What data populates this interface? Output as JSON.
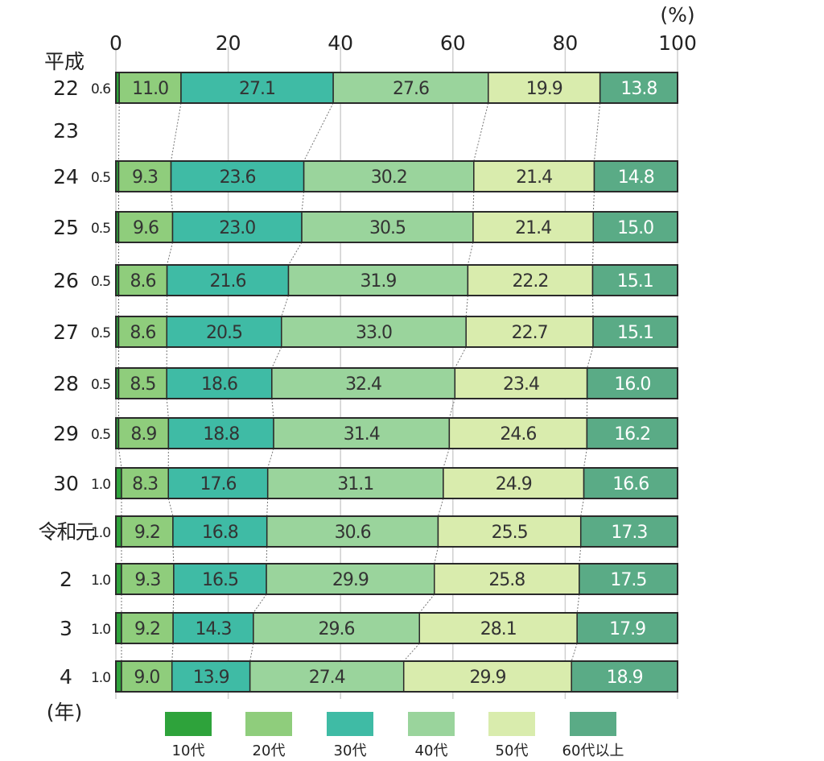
{
  "chart_data": {
    "type": "bar",
    "orientation": "horizontal",
    "stacked": "percent",
    "unit_label": "(%)",
    "year_axis_label": "(年)",
    "era_label": "平成",
    "xlim": [
      0,
      100
    ],
    "xticks": [
      0,
      20,
      40,
      60,
      80,
      100
    ],
    "grid": true,
    "legend_position": "bottom",
    "categories": [
      "22",
      "23",
      "24",
      "25",
      "26",
      "27",
      "28",
      "29",
      "30",
      "令和元",
      "2",
      "3",
      "4"
    ],
    "series": [
      {
        "name": "10代",
        "color": "#2ea33b",
        "values": [
          0.6,
          null,
          0.5,
          0.5,
          0.5,
          0.5,
          0.5,
          0.5,
          1.0,
          1.0,
          1.0,
          1.0,
          1.0
        ]
      },
      {
        "name": "20代",
        "color": "#8fcd7c",
        "values": [
          11.0,
          null,
          9.3,
          9.6,
          8.6,
          8.6,
          8.5,
          8.9,
          8.3,
          9.2,
          9.3,
          9.2,
          9.0
        ]
      },
      {
        "name": "30代",
        "color": "#3fbba5",
        "values": [
          27.1,
          null,
          23.6,
          23.0,
          21.6,
          20.5,
          18.6,
          18.8,
          17.6,
          16.8,
          16.5,
          14.3,
          13.9
        ]
      },
      {
        "name": "40代",
        "color": "#9ad49c",
        "values": [
          27.6,
          null,
          30.2,
          30.5,
          31.9,
          33.0,
          32.4,
          31.4,
          31.1,
          30.6,
          29.9,
          29.6,
          27.4
        ]
      },
      {
        "name": "50代",
        "color": "#d9ecad",
        "values": [
          19.9,
          null,
          21.4,
          21.4,
          22.2,
          22.7,
          23.4,
          24.6,
          24.9,
          25.5,
          25.8,
          28.1,
          29.9
        ]
      },
      {
        "name": "60代以上",
        "color": "#5aab86",
        "values": [
          13.8,
          null,
          14.8,
          15.0,
          15.1,
          15.1,
          16.0,
          16.2,
          16.6,
          17.3,
          17.5,
          17.9,
          18.9
        ]
      }
    ],
    "value_labels": [
      [
        "0.6",
        "11.0",
        "27.1",
        "27.6",
        "19.9",
        "13.8"
      ],
      null,
      [
        "0.5",
        "9.3",
        "23.6",
        "30.2",
        "21.4",
        "14.8"
      ],
      [
        "0.5",
        "9.6",
        "23.0",
        "30.5",
        "21.4",
        "15.0"
      ],
      [
        "0.5",
        "8.6",
        "21.6",
        "31.9",
        "22.2",
        "15.1"
      ],
      [
        "0.5",
        "8.6",
        "20.5",
        "33.0",
        "22.7",
        "15.1"
      ],
      [
        "0.5",
        "8.5",
        "18.6",
        "32.4",
        "23.4",
        "16.0"
      ],
      [
        "0.5",
        "8.9",
        "18.8",
        "31.4",
        "24.6",
        "16.2"
      ],
      [
        "1.0",
        "8.3",
        "17.6",
        "31.1",
        "24.9",
        "16.6"
      ],
      [
        "1.0",
        "9.2",
        "16.8",
        "30.6",
        "25.5",
        "17.3"
      ],
      [
        "1.0",
        "9.3",
        "16.5",
        "29.9",
        "25.8",
        "17.5"
      ],
      [
        "1.0",
        "9.2",
        "14.3",
        "29.6",
        "28.1",
        "17.9"
      ],
      [
        "1.0",
        "9.0",
        "13.9",
        "27.4",
        "29.9",
        "18.9"
      ]
    ]
  }
}
